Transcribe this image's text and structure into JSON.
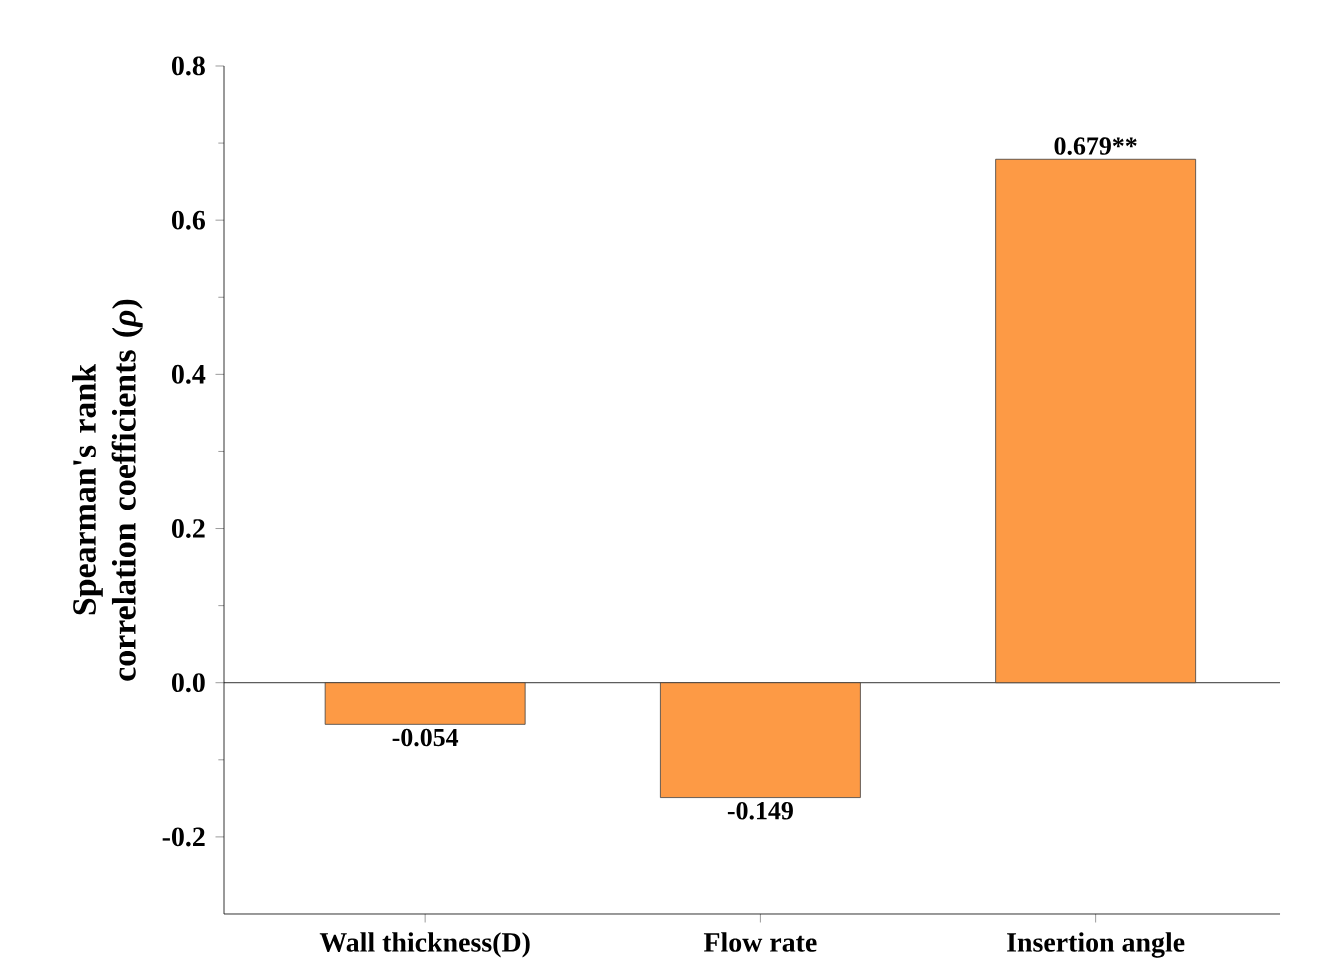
{
  "chart_data": {
    "type": "bar",
    "ylabel": "Spearman's rank correlation coefficients (*ρ*)",
    "categories": [
      "Wall thickness(D)",
      "Flow rate",
      "Insertion angle"
    ],
    "values": [
      -0.054,
      -0.149,
      0.679
    ],
    "value_labels": [
      "-0.054",
      "-0.149",
      "0.679**"
    ],
    "color": "#fd9a45",
    "ylim": [
      -0.3,
      0.8
    ],
    "yticks": [
      {
        "value": -0.2,
        "label": "-0.2"
      },
      {
        "value": 0,
        "label": "0.0"
      },
      {
        "value": 0.2,
        "label": "0.2"
      },
      {
        "value": 0.4,
        "label": "0.4"
      },
      {
        "value": 0.6,
        "label": "0.6"
      },
      {
        "value": 0.8,
        "label": "0.8"
      }
    ],
    "ref_lines": [
      {
        "axis": "y",
        "value": 0
      }
    ]
  }
}
